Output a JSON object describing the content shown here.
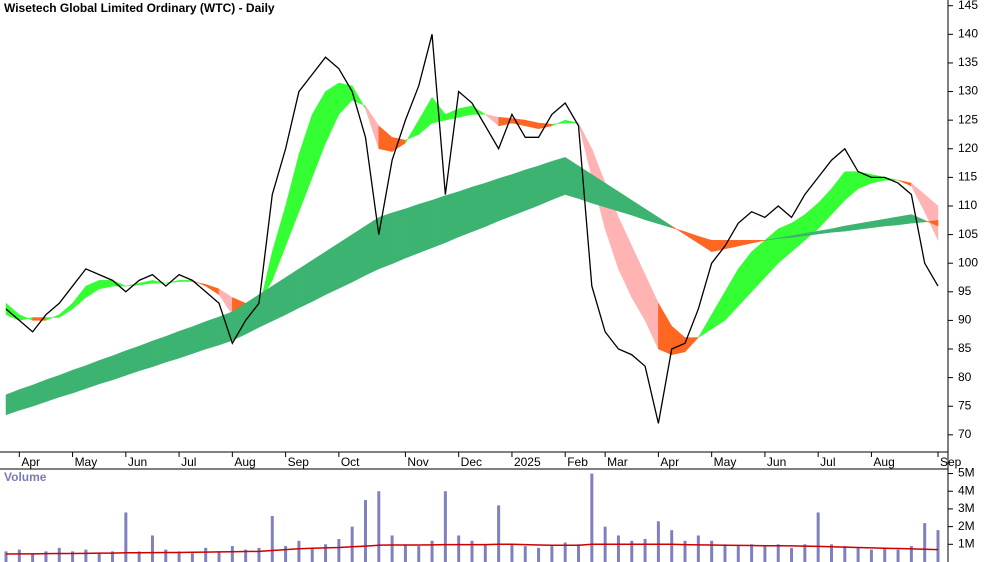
{
  "chart_data": [
    {
      "type": "line",
      "title": "Wisetech Global Limited Ordinary (WTC) - Daily",
      "categories": [
        null,
        "Apr",
        null,
        null,
        null,
        "May",
        null,
        null,
        null,
        "Jun",
        null,
        null,
        null,
        "Jul",
        null,
        null,
        null,
        "Aug",
        null,
        null,
        null,
        "Sep",
        null,
        null,
        null,
        "Oct",
        null,
        null,
        null,
        null,
        "Nov",
        null,
        null,
        null,
        "Dec",
        null,
        null,
        null,
        "2025",
        null,
        null,
        null,
        "Feb",
        null,
        null,
        "Mar",
        null,
        null,
        null,
        "Apr",
        null,
        null,
        null,
        "May",
        null,
        null,
        null,
        "Jun",
        null,
        null,
        null,
        "Jul",
        null,
        null,
        null,
        "Aug",
        null,
        null,
        null,
        null,
        "Sep"
      ],
      "values": [
        92,
        90,
        88,
        91,
        93,
        96,
        99,
        98,
        97,
        95,
        97,
        98,
        96,
        98,
        97,
        95,
        93,
        86,
        90,
        93,
        112,
        120,
        130,
        133,
        136,
        134,
        130,
        122,
        105,
        118,
        125,
        131,
        140,
        112,
        130,
        128,
        124,
        120,
        126,
        122,
        122,
        126,
        128,
        124,
        96,
        88,
        85,
        84,
        82,
        72,
        85,
        86,
        92,
        100,
        103,
        107,
        109,
        108,
        110,
        108,
        112,
        115,
        118,
        120,
        116,
        115,
        115,
        114,
        112,
        100,
        96
      ],
      "color": "#000000",
      "ribbons": [
        {
          "short": [
            93,
            91,
            90,
            90,
            91,
            93,
            96,
            97,
            97,
            96,
            96.5,
            97,
            96.5,
            97,
            97,
            96,
            94.5,
            91,
            90.5,
            92,
            102,
            110,
            119,
            126,
            130,
            131.5,
            131,
            127,
            120,
            119.5,
            121,
            125,
            129,
            126,
            127,
            127.5,
            126,
            124,
            124.5,
            124,
            123.5,
            124,
            125,
            124.5,
            115,
            106,
            99,
            94,
            90,
            85,
            84,
            84.5,
            87,
            91,
            95,
            99,
            102,
            104,
            106,
            107,
            108.5,
            110.5,
            113,
            116,
            116,
            115.5,
            115,
            114.5,
            113.5,
            109,
            104
          ],
          "long": [
            91,
            90,
            90.5,
            90.5,
            90.5,
            92,
            94,
            95.5,
            96,
            96,
            96.2,
            96.5,
            96.5,
            96.8,
            96.8,
            96.3,
            95.5,
            94,
            93,
            93,
            97,
            103,
            109,
            115,
            121,
            126,
            128.5,
            127.5,
            124,
            122,
            121.5,
            122.5,
            124.5,
            125,
            125.5,
            126,
            126,
            125.5,
            125.3,
            125,
            124.5,
            124.3,
            124.5,
            124.5,
            120,
            114,
            108,
            103,
            98,
            93,
            89,
            87,
            87,
            88.5,
            90,
            92.5,
            95,
            97.5,
            100,
            102,
            104,
            106,
            108.5,
            111,
            113,
            114,
            114.5,
            114.5,
            114,
            112,
            110
          ],
          "colors": [
            "#33ff33",
            "#ff6622"
          ]
        },
        {
          "short": [
            77,
            77.9,
            78.7,
            79.6,
            80.4,
            81.3,
            82.1,
            83,
            83.8,
            84.7,
            85.5,
            86.4,
            87.2,
            88.1,
            88.9,
            89.8,
            90.6,
            91.5,
            93,
            94.5,
            96,
            97.5,
            99,
            100.5,
            102,
            103.5,
            105,
            106.5,
            108,
            108.8,
            109.5,
            110.3,
            111,
            111.8,
            112.5,
            113.3,
            114,
            114.8,
            115.5,
            116.3,
            117,
            117.8,
            118.5,
            117,
            115.5,
            114,
            112.5,
            111,
            109.5,
            108,
            106.5,
            105,
            103.5,
            102,
            102.5,
            103,
            103.5,
            104,
            104.4,
            104.8,
            105.2,
            105.6,
            106,
            106.5,
            106.9,
            107.3,
            107.7,
            108.1,
            108.5,
            107.5,
            106.5
          ],
          "long": [
            73.5,
            74.3,
            75,
            75.8,
            76.6,
            77.3,
            78.1,
            78.9,
            79.6,
            80.4,
            81.2,
            81.9,
            82.7,
            83.4,
            84.2,
            85,
            85.7,
            86.5,
            87.6,
            88.8,
            89.9,
            91,
            92.2,
            93.3,
            94.5,
            95.6,
            96.7,
            97.9,
            99,
            99.9,
            100.9,
            101.8,
            102.7,
            103.6,
            104.6,
            105.5,
            106.4,
            107.4,
            108.3,
            109.2,
            110.1,
            111.1,
            112,
            111.3,
            110.5,
            109.8,
            109.1,
            108.4,
            107.6,
            106.9,
            106.2,
            105.5,
            104.7,
            104,
            104,
            104,
            104,
            104,
            104.3,
            104.5,
            104.8,
            105.1,
            105.4,
            105.6,
            105.9,
            106.2,
            106.5,
            106.7,
            107,
            107.2,
            107.5
          ],
          "colors": [
            "#3cb371",
            "#ff6622"
          ]
        }
      ],
      "ylim": [
        67,
        146
      ],
      "yticks": [
        70,
        75,
        80,
        85,
        90,
        95,
        100,
        105,
        110,
        115,
        120,
        125,
        130,
        135,
        140,
        145
      ]
    },
    {
      "type": "bar",
      "title": "Volume",
      "values": [
        0.6,
        0.7,
        0.5,
        0.6,
        0.8,
        0.6,
        0.7,
        0.5,
        0.6,
        2.8,
        0.6,
        1.5,
        0.7,
        0.6,
        0.5,
        0.8,
        0.6,
        0.9,
        0.7,
        0.8,
        2.6,
        0.9,
        1.2,
        0.8,
        1.0,
        1.3,
        2.0,
        3.5,
        4.0,
        1.5,
        1.0,
        0.9,
        1.2,
        4.0,
        1.5,
        1.2,
        1.0,
        3.2,
        1.0,
        0.9,
        0.8,
        0.9,
        1.1,
        1.0,
        5.0,
        2.0,
        1.5,
        1.2,
        1.3,
        2.3,
        1.8,
        1.2,
        1.5,
        1.2,
        1.0,
        0.9,
        1.0,
        0.9,
        1.0,
        0.8,
        1.0,
        2.8,
        1.0,
        0.9,
        0.8,
        0.7,
        0.8,
        0.7,
        0.9,
        2.2,
        1.8
      ],
      "color": "#8080c0",
      "average": [
        0.45,
        0.46,
        0.46,
        0.47,
        0.48,
        0.48,
        0.49,
        0.5,
        0.5,
        0.52,
        0.52,
        0.53,
        0.54,
        0.54,
        0.55,
        0.56,
        0.57,
        0.58,
        0.59,
        0.6,
        0.65,
        0.7,
        0.75,
        0.78,
        0.8,
        0.82,
        0.86,
        0.9,
        0.95,
        0.96,
        0.96,
        0.96,
        0.97,
        0.98,
        0.98,
        0.98,
        0.98,
        1.0,
        1.0,
        0.98,
        0.96,
        0.95,
        0.95,
        0.95,
        1.0,
        1.0,
        1.0,
        1.0,
        1.0,
        1.0,
        1.0,
        0.98,
        0.97,
        0.96,
        0.95,
        0.94,
        0.93,
        0.92,
        0.92,
        0.91,
        0.9,
        0.88,
        0.86,
        0.84,
        0.82,
        0.8,
        0.78,
        0.76,
        0.74,
        0.72,
        0.7
      ],
      "average_color": "#cc0000",
      "ylim": [
        0,
        5.2
      ],
      "yticks": [
        {
          "value": 1,
          "label": "1M"
        },
        {
          "value": 2,
          "label": "2M"
        },
        {
          "value": 3,
          "label": "3M"
        },
        {
          "value": 4,
          "label": "4M"
        },
        {
          "value": 5,
          "label": "5M"
        }
      ]
    }
  ]
}
